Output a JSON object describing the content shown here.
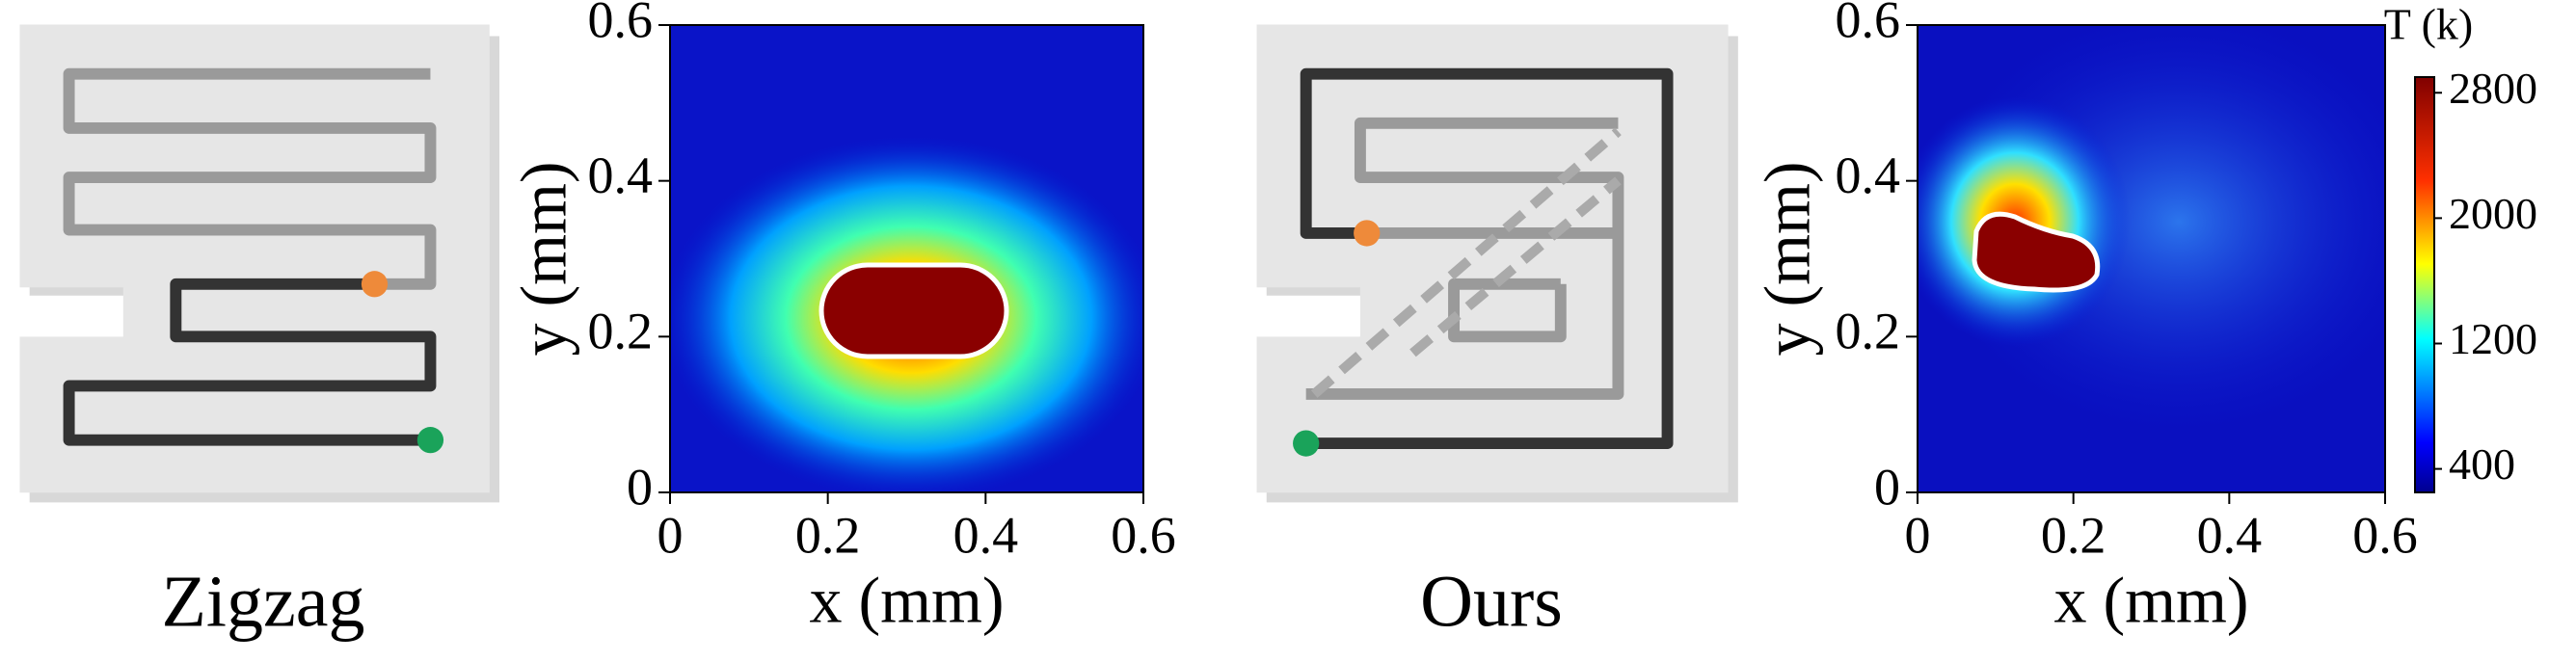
{
  "chart_data": [
    {
      "type": "heatmap",
      "xlabel": "x (mm)",
      "ylabel": "y (mm)",
      "xlim": [
        0,
        0.6
      ],
      "ylim": [
        0,
        0.6
      ],
      "xticks": [
        0,
        0.2,
        0.4,
        0.6
      ],
      "yticks": [
        0,
        0.2,
        0.4,
        0.6
      ]
    },
    {
      "type": "heatmap",
      "xlabel": "x (mm)",
      "ylabel": "y (mm)",
      "xlim": [
        0,
        0.6
      ],
      "ylim": [
        0,
        0.6
      ],
      "xticks": [
        0,
        0.2,
        0.4,
        0.6
      ],
      "yticks": [
        0,
        0.2,
        0.4,
        0.6
      ],
      "colorbar": {
        "label": "T (k)",
        "lim": [
          250,
          2900
        ],
        "ticks": [
          400,
          1200,
          2000,
          2800
        ]
      }
    }
  ],
  "panels": [
    {
      "label": "Zigzag"
    },
    {
      "label": "Ours"
    }
  ]
}
